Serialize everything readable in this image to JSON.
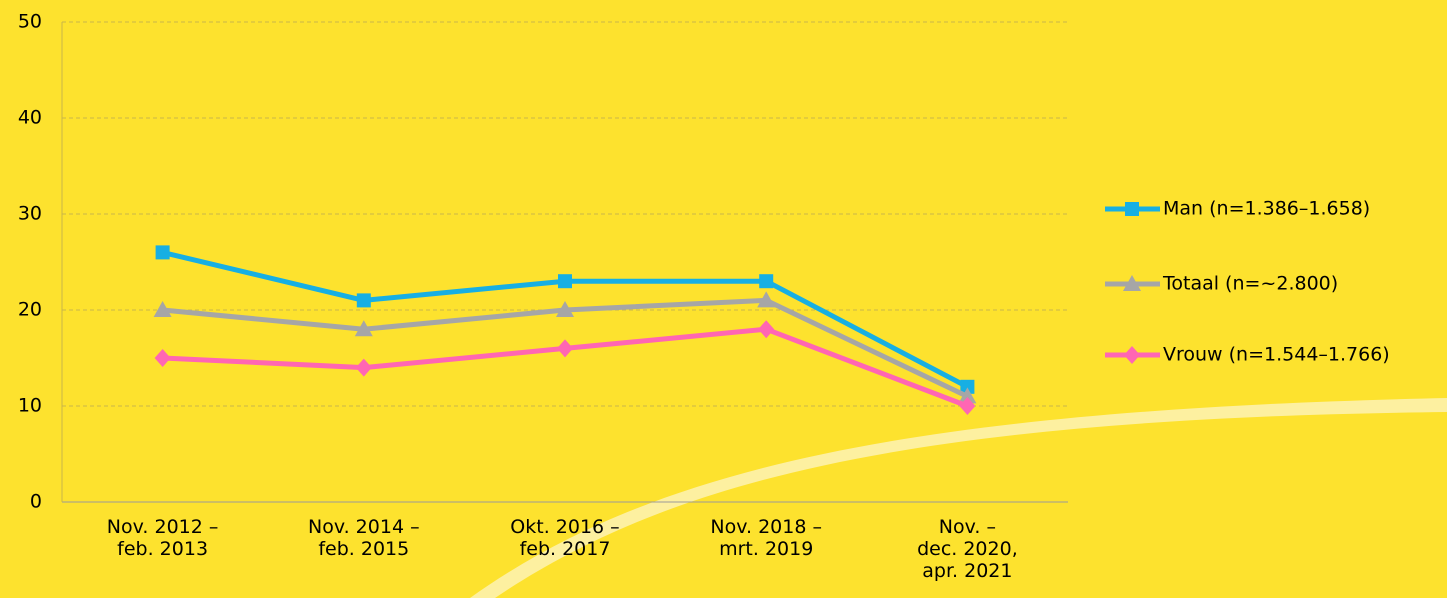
{
  "chart_data": {
    "type": "line",
    "categories": [
      "Nov. 2012 –\nfeb. 2013",
      "Nov. 2014 –\nfeb. 2015",
      "Okt. 2016 –\nfeb. 2017",
      "Nov. 2018 –\nmrt. 2019",
      "Nov. –\ndec. 2020,\napr. 2021"
    ],
    "series": [
      {
        "name": "Man (n=1.386–1.658)",
        "color": "#17afe3",
        "marker": "square",
        "values": [
          26,
          21,
          23,
          23,
          12
        ]
      },
      {
        "name": "Totaal (n=~2.800)",
        "color": "#a6a6a6",
        "marker": "triangle",
        "values": [
          20,
          18,
          20,
          21,
          11
        ]
      },
      {
        "name": "Vrouw (n=1.544–1.766)",
        "color": "#ff66b3",
        "marker": "diamond",
        "values": [
          15,
          14,
          16,
          18,
          10
        ]
      }
    ],
    "ylim": [
      0,
      50
    ],
    "yticks": [
      0,
      10,
      20,
      30,
      40,
      50
    ],
    "grid": true,
    "legend": "right"
  }
}
